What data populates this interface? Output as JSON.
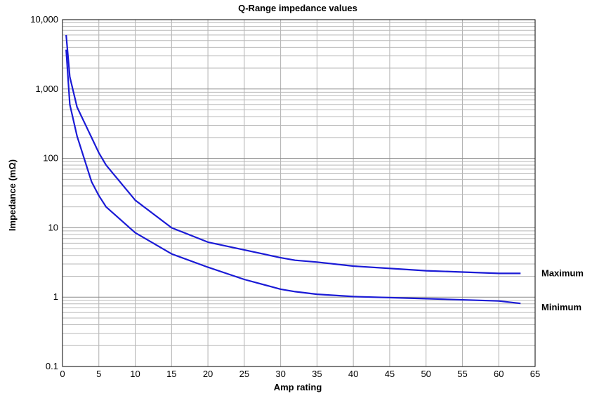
{
  "chart_data": {
    "type": "line",
    "title": "Q-Range impedance values",
    "xlabel": "Amp rating",
    "ylabel": "Impedance (mΩ)",
    "x_scale": "linear",
    "y_scale": "log",
    "xlim": [
      0,
      65
    ],
    "ylim": [
      0.1,
      10000
    ],
    "x_ticks": [
      0,
      5,
      10,
      15,
      20,
      25,
      30,
      35,
      40,
      45,
      50,
      55,
      60,
      65
    ],
    "x_tick_labels": [
      "0",
      "5",
      "10",
      "15",
      "20",
      "25",
      "30",
      "35",
      "40",
      "45",
      "50",
      "55",
      "60",
      "65"
    ],
    "y_ticks": [
      0.1,
      1,
      10,
      100,
      1000,
      10000
    ],
    "y_tick_labels": [
      "0.1",
      "1",
      "10",
      "100",
      "1,000",
      "10,000"
    ],
    "grid": true,
    "line_color": "#1a1ad6",
    "series": [
      {
        "name": "Maximum",
        "points": [
          [
            0.5,
            6000
          ],
          [
            1,
            1500
          ],
          [
            2,
            550
          ],
          [
            4,
            200
          ],
          [
            5,
            120
          ],
          [
            6,
            80
          ],
          [
            10,
            25
          ],
          [
            15,
            10
          ],
          [
            20,
            6.2
          ],
          [
            25,
            4.8
          ],
          [
            30,
            3.7
          ],
          [
            32,
            3.4
          ],
          [
            35,
            3.2
          ],
          [
            40,
            2.8
          ],
          [
            50,
            2.4
          ],
          [
            60,
            2.2
          ],
          [
            63,
            2.2
          ]
        ]
      },
      {
        "name": "Minimum",
        "points": [
          [
            0.5,
            3700
          ],
          [
            1,
            600
          ],
          [
            2,
            210
          ],
          [
            4,
            46
          ],
          [
            5,
            29
          ],
          [
            6,
            20
          ],
          [
            10,
            8.5
          ],
          [
            15,
            4.2
          ],
          [
            20,
            2.7
          ],
          [
            25,
            1.8
          ],
          [
            30,
            1.3
          ],
          [
            32,
            1.2
          ],
          [
            35,
            1.1
          ],
          [
            40,
            1.02
          ],
          [
            50,
            0.95
          ],
          [
            60,
            0.88
          ],
          [
            63,
            0.81
          ]
        ]
      }
    ]
  }
}
